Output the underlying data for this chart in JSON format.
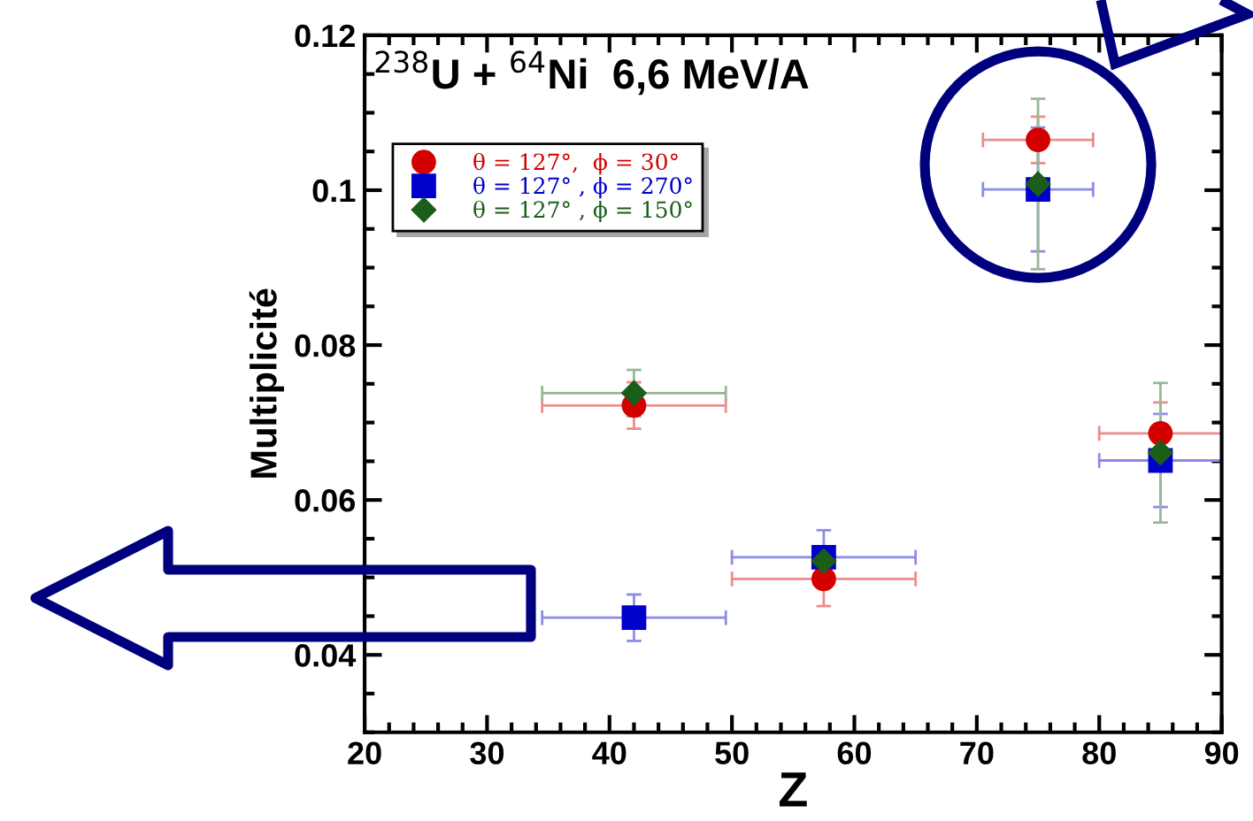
{
  "chart_data": {
    "type": "scatter",
    "title": "$^{238}$U + $^{64}$Ni  6,6 MeV/A",
    "xlabel": "Z",
    "ylabel": "Multiplicité",
    "x": [
      42,
      57.5,
      75,
      85
    ],
    "series": [
      {
        "name": "θ = 127°,  ϕ = 30°",
        "color": "#d40000",
        "marker": "circle",
        "values": [
          0.0722,
          0.0498,
          0.1065,
          0.0686
        ],
        "errors": [
          0.003,
          0.0035,
          0.003,
          0.004
        ],
        "xerrors": [
          7.5,
          7.5,
          4.5,
          5
        ]
      },
      {
        "name": "θ = 127° , ϕ = 270°",
        "color": "#0000cc",
        "marker": "square",
        "values": [
          0.0448,
          0.0526,
          0.1001,
          0.0651
        ],
        "errors": [
          0.003,
          0.0035,
          0.008,
          0.006
        ],
        "xerrors": [
          7.5,
          7.5,
          4.5,
          5
        ]
      },
      {
        "name": "θ = 127° , ϕ = 150°",
        "color": "#1a5e1a",
        "marker": "diamond",
        "values": [
          0.0738,
          0.0521,
          0.1008,
          0.0661
        ],
        "errors": [
          0.003,
          null,
          0.011,
          0.009
        ],
        "xerrors": [
          7.5,
          null,
          null,
          null
        ]
      }
    ],
    "xlim": [
      20,
      90
    ],
    "xticks": [
      20,
      30,
      40,
      50,
      60,
      70,
      80,
      90
    ],
    "ylim": [
      0.03,
      0.12
    ],
    "yticks": [
      {
        "value": 0.04,
        "label": "0.04"
      },
      {
        "value": 0.06,
        "label": "0.06"
      },
      {
        "value": 0.08,
        "label": "0.08"
      },
      {
        "value": 0.1,
        "label": "0.1"
      },
      {
        "value": 0.12,
        "label": "0.12"
      }
    ],
    "grid": false,
    "legend": "top left"
  }
}
